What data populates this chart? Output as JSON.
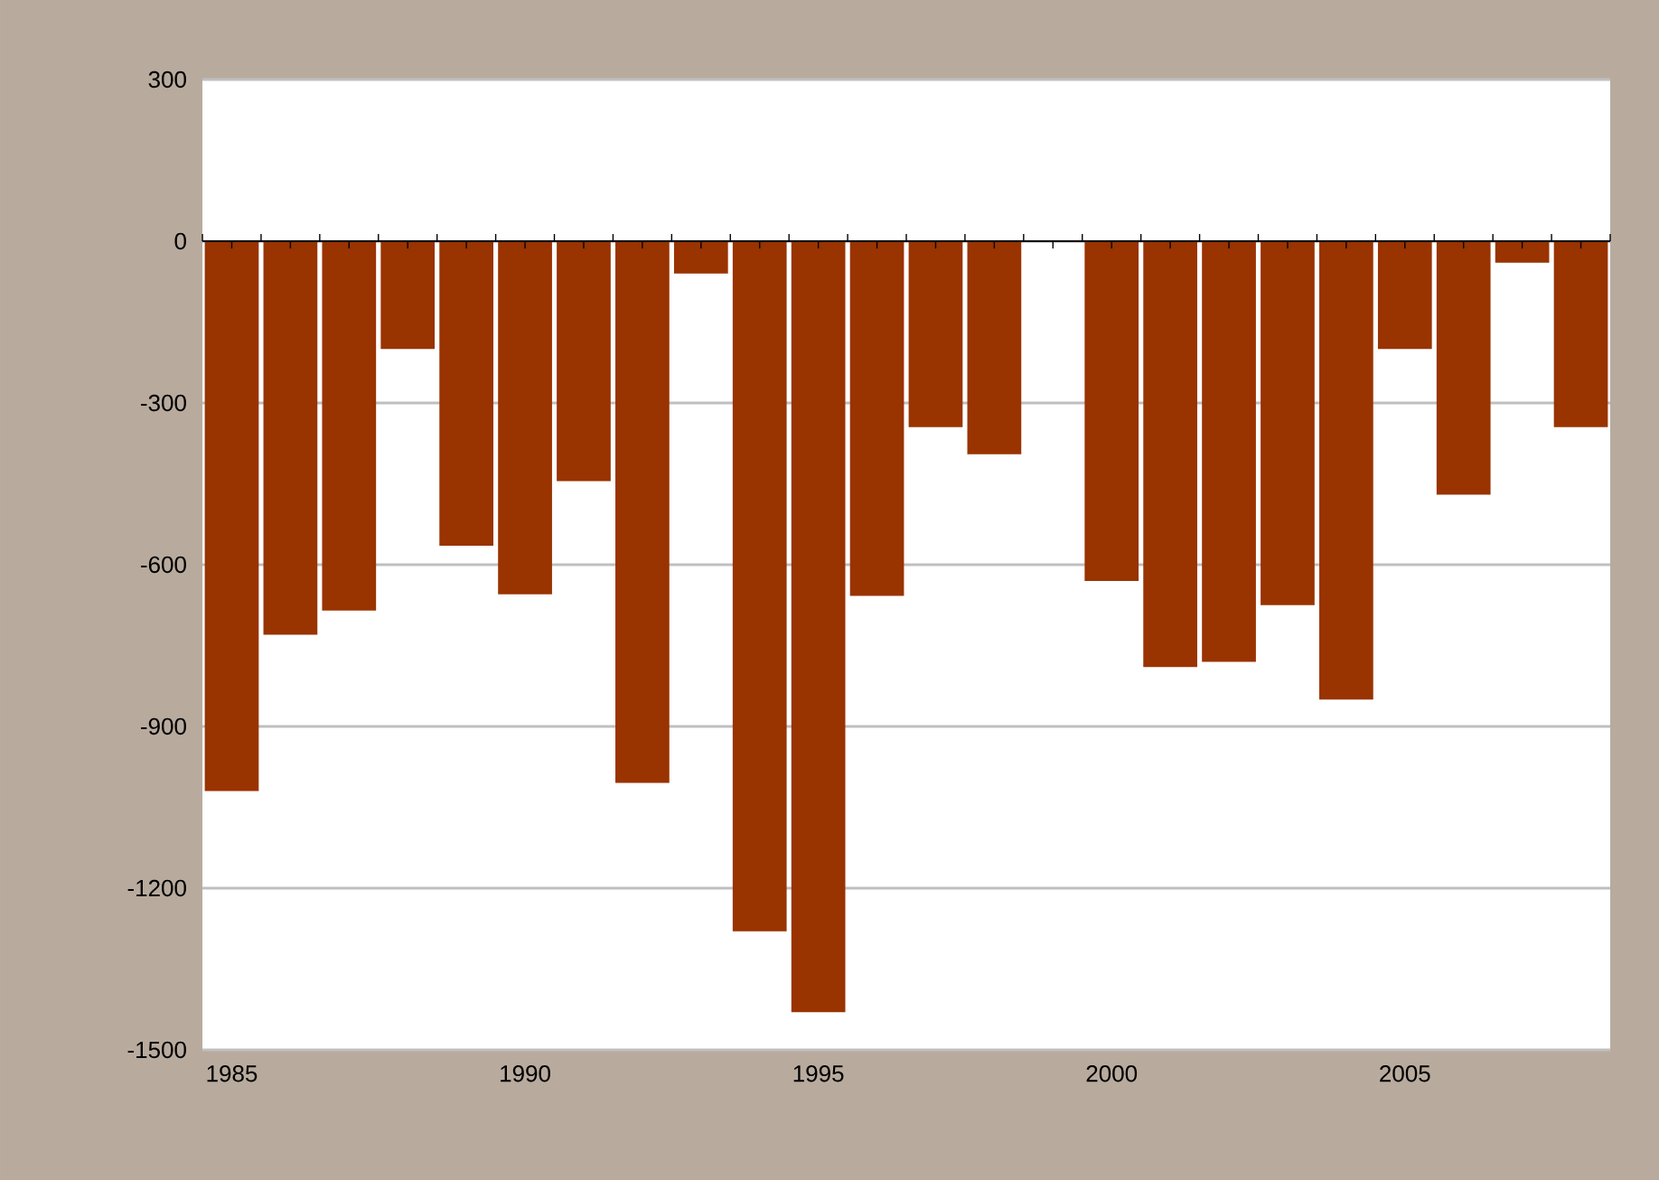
{
  "chart_data": {
    "type": "bar",
    "categories": [
      "1985",
      null,
      null,
      null,
      null,
      "1990",
      null,
      null,
      null,
      null,
      "1995",
      null,
      null,
      null,
      null,
      "2000",
      null,
      null,
      null,
      null,
      "2005",
      null,
      null,
      null
    ],
    "values": [
      -1020,
      -730,
      -685,
      -200,
      -565,
      -655,
      -445,
      -1005,
      -60,
      -1280,
      -1430,
      -658,
      -345,
      -395,
      null,
      -630,
      -790,
      -780,
      -675,
      -850,
      -200,
      -470,
      -40,
      -345
    ],
    "color": "#993300",
    "ylim": [
      -1500,
      300
    ],
    "yticks": [
      -1500,
      -1200,
      -900,
      -600,
      -300,
      0,
      300
    ],
    "grid": "y"
  }
}
